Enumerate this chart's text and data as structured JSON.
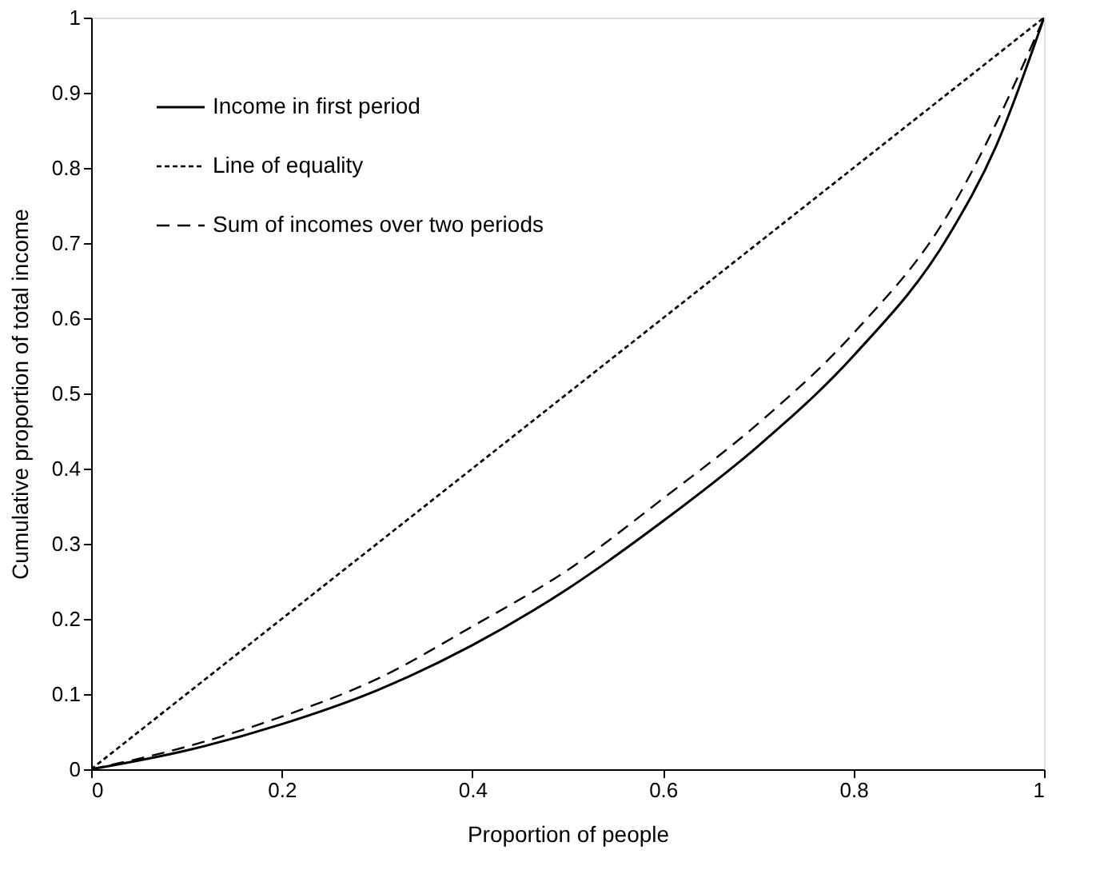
{
  "chart_data": {
    "type": "line",
    "xlabel": "Proportion of people",
    "ylabel": "Cumulative proportion of total income",
    "xlim": [
      0,
      1
    ],
    "ylim": [
      0,
      1
    ],
    "xticks": [
      0,
      0.2,
      0.4,
      0.6,
      0.8,
      1
    ],
    "yticks": [
      0,
      0.1,
      0.2,
      0.3,
      0.4,
      0.5,
      0.6,
      0.7,
      0.8,
      0.9,
      1
    ],
    "grid": false,
    "legend": "top left",
    "series": [
      {
        "name": "Income in first period",
        "color": "#000000",
        "line_style": "solid",
        "x": [
          0,
          0.1,
          0.2,
          0.3,
          0.4,
          0.5,
          0.6,
          0.7,
          0.8,
          0.9,
          0.95,
          1
        ],
        "values": [
          0,
          0.025,
          0.06,
          0.105,
          0.165,
          0.24,
          0.33,
          0.43,
          0.55,
          0.71,
          0.83,
          1
        ]
      },
      {
        "name": "Line of equality",
        "color": "#000000",
        "line_style": "dotted",
        "x": [
          0,
          1
        ],
        "values": [
          0,
          1
        ]
      },
      {
        "name": "Sum of incomes over two periods",
        "color": "#000000",
        "line_style": "dashed",
        "x": [
          0,
          0.1,
          0.2,
          0.3,
          0.4,
          0.5,
          0.6,
          0.7,
          0.8,
          0.9,
          0.95,
          1
        ],
        "values": [
          0,
          0.03,
          0.07,
          0.12,
          0.19,
          0.265,
          0.36,
          0.46,
          0.58,
          0.74,
          0.86,
          1
        ]
      }
    ]
  }
}
